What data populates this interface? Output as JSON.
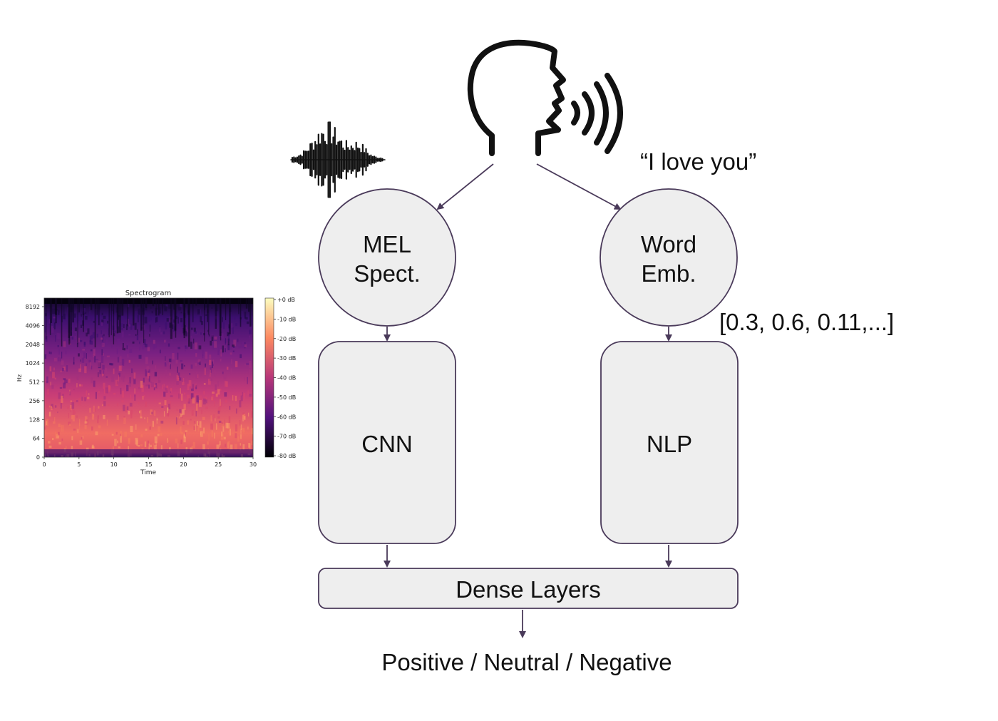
{
  "speech_text": "“I love you”",
  "nodes": {
    "mel": {
      "line1": "MEL",
      "line2": "Spect."
    },
    "word": {
      "line1": "Word",
      "line2": "Emb."
    },
    "cnn": {
      "label": "CNN"
    },
    "nlp": {
      "label": "NLP"
    },
    "dense": {
      "label": "Dense Layers"
    }
  },
  "embedding_example": "[0.3, 0.6, 0.11,...]",
  "output_label": "Positive / Neutral / Negative",
  "spectrogram": {
    "title": "Spectrogram",
    "xlabel": "Time",
    "ylabel": "Hz",
    "x_ticks": [
      "0",
      "5",
      "10",
      "15",
      "20",
      "25",
      "30"
    ],
    "y_ticks": [
      "0",
      "64",
      "128",
      "256",
      "512",
      "1024",
      "2048",
      "4096",
      "8192"
    ],
    "colorbar_ticks": [
      "+0 dB",
      "-10 dB",
      "-20 dB",
      "-30 dB",
      "-40 dB",
      "-50 dB",
      "-60 dB",
      "-70 dB",
      "-80 dB"
    ]
  },
  "colors": {
    "node_fill": "#eeeeee",
    "node_stroke": "#4a3a5a",
    "arrow": "#4a3a5a",
    "spectrogram_low": "#000004",
    "spectrogram_mid": "#b73779",
    "spectrogram_high": "#fcfdbf"
  },
  "icons": [
    "speaking-head-icon",
    "sound-waves-icon",
    "audio-waveform-icon"
  ]
}
